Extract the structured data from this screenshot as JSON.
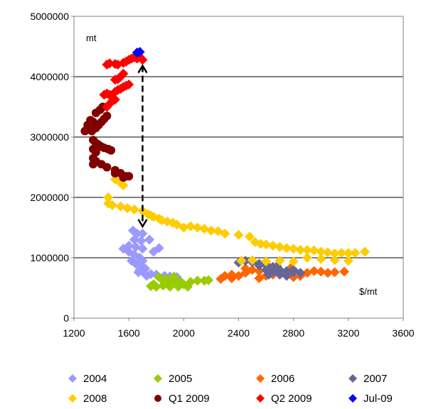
{
  "chart_data": {
    "type": "scatter",
    "title": "",
    "unit_y_label": "mt",
    "unit_x_label": "$/mt",
    "xlim": [
      1200,
      3600
    ],
    "ylim": [
      0,
      5000000
    ],
    "xticks": [
      "1200",
      "1600",
      "2000",
      "2400",
      "2800",
      "3200",
      "3600"
    ],
    "yticks": [
      "0",
      "1000000",
      "2000000",
      "3000000",
      "4000000",
      "5000000"
    ],
    "grid": "horizontal",
    "legend_position": "bottom",
    "series": [
      {
        "name": "2004",
        "color": "#9999ff",
        "marker": "diamond",
        "points": [
          [
            1630,
            1450000
          ],
          [
            1660,
            1400000
          ],
          [
            1700,
            1400000
          ],
          [
            1640,
            1300000
          ],
          [
            1690,
            1280000
          ],
          [
            1750,
            1300000
          ],
          [
            1600,
            1200000
          ],
          [
            1650,
            1180000
          ],
          [
            1700,
            1150000
          ],
          [
            1560,
            1150000
          ],
          [
            1600,
            1100000
          ],
          [
            1820,
            1160000
          ],
          [
            1780,
            1100000
          ],
          [
            1640,
            1050000
          ],
          [
            1680,
            1000000
          ],
          [
            1700,
            950000
          ],
          [
            1620,
            950000
          ],
          [
            1650,
            900000
          ],
          [
            1690,
            870000
          ],
          [
            1720,
            820000
          ],
          [
            1680,
            800000
          ],
          [
            1710,
            750000
          ],
          [
            1760,
            730000
          ],
          [
            1800,
            720000
          ],
          [
            1860,
            700000
          ],
          [
            1900,
            690000
          ],
          [
            1950,
            680000
          ],
          [
            1730,
            700000
          ],
          [
            1670,
            760000
          ]
        ]
      },
      {
        "name": "2005",
        "color": "#99cc00",
        "marker": "diamond",
        "points": [
          [
            1760,
            530000
          ],
          [
            1800,
            520000
          ],
          [
            1850,
            540000
          ],
          [
            1900,
            560000
          ],
          [
            1950,
            580000
          ],
          [
            2000,
            560000
          ],
          [
            1870,
            600000
          ],
          [
            1920,
            620000
          ],
          [
            1980,
            600000
          ],
          [
            2030,
            520000
          ],
          [
            1820,
            680000
          ],
          [
            1840,
            640000
          ],
          [
            1780,
            560000
          ],
          [
            1900,
            520000
          ],
          [
            1960,
            520000
          ],
          [
            2050,
            600000
          ],
          [
            2100,
            620000
          ],
          [
            2150,
            620000
          ],
          [
            2180,
            630000
          ],
          [
            1880,
            650000
          ],
          [
            1930,
            690000
          ]
        ]
      },
      {
        "name": "2006",
        "color": "#ff6600",
        "marker": "diamond",
        "points": [
          [
            2270,
            650000
          ],
          [
            2300,
            700000
          ],
          [
            2350,
            720000
          ],
          [
            2400,
            700000
          ],
          [
            2450,
            750000
          ],
          [
            2500,
            800000
          ],
          [
            2550,
            780000
          ],
          [
            2600,
            700000
          ],
          [
            2650,
            720000
          ],
          [
            2700,
            760000
          ],
          [
            2750,
            720000
          ],
          [
            2800,
            680000
          ],
          [
            2850,
            700000
          ],
          [
            2900,
            750000
          ],
          [
            2950,
            780000
          ],
          [
            3000,
            770000
          ],
          [
            3050,
            750000
          ],
          [
            3100,
            760000
          ],
          [
            3170,
            770000
          ],
          [
            2450,
            820000
          ],
          [
            2350,
            660000
          ],
          [
            2550,
            660000
          ],
          [
            2620,
            850000
          ],
          [
            2780,
            830000
          ]
        ]
      },
      {
        "name": "2007",
        "color": "#666699",
        "marker": "diamond",
        "points": [
          [
            2400,
            920000
          ],
          [
            2450,
            950000
          ],
          [
            2500,
            930000
          ],
          [
            2550,
            900000
          ],
          [
            2600,
            880000
          ],
          [
            2650,
            850000
          ],
          [
            2700,
            800000
          ],
          [
            2750,
            780000
          ],
          [
            2800,
            760000
          ],
          [
            2850,
            750000
          ],
          [
            2650,
            760000
          ],
          [
            2700,
            720000
          ],
          [
            2750,
            700000
          ],
          [
            2600,
            800000
          ],
          [
            2550,
            870000
          ],
          [
            2620,
            720000
          ],
          [
            2680,
            860000
          ],
          [
            2800,
            800000
          ]
        ]
      },
      {
        "name": "2008",
        "color": "#ffcc00",
        "marker": "diamond",
        "points": [
          [
            1500,
            2300000
          ],
          [
            1540,
            2240000
          ],
          [
            1560,
            2200000
          ],
          [
            1450,
            2000000
          ],
          [
            1450,
            1900000
          ],
          [
            1480,
            1870000
          ],
          [
            1540,
            1850000
          ],
          [
            1590,
            1820000
          ],
          [
            1640,
            1800000
          ],
          [
            1700,
            1780000
          ],
          [
            1740,
            1720000
          ],
          [
            1760,
            1700000
          ],
          [
            1780,
            1680000
          ],
          [
            1820,
            1650000
          ],
          [
            1840,
            1620000
          ],
          [
            1880,
            1600000
          ],
          [
            1920,
            1580000
          ],
          [
            1950,
            1550000
          ],
          [
            2000,
            1500000
          ],
          [
            2050,
            1520000
          ],
          [
            2100,
            1500000
          ],
          [
            2150,
            1480000
          ],
          [
            2200,
            1450000
          ],
          [
            2250,
            1440000
          ],
          [
            2300,
            1400000
          ],
          [
            2400,
            1380000
          ],
          [
            2480,
            1350000
          ],
          [
            2520,
            1260000
          ],
          [
            2560,
            1230000
          ],
          [
            2600,
            1220000
          ],
          [
            2650,
            1200000
          ],
          [
            2700,
            1180000
          ],
          [
            2750,
            1160000
          ],
          [
            2800,
            1150000
          ],
          [
            2850,
            1130000
          ],
          [
            2900,
            1130000
          ],
          [
            2950,
            1120000
          ],
          [
            3000,
            1100000
          ],
          [
            3050,
            1090000
          ],
          [
            3100,
            1070000
          ],
          [
            3150,
            1080000
          ],
          [
            3200,
            1080000
          ],
          [
            3250,
            1080000
          ],
          [
            3320,
            1100000
          ],
          [
            2420,
            950000
          ],
          [
            2500,
            960000
          ],
          [
            2600,
            940000
          ],
          [
            2700,
            950000
          ],
          [
            2800,
            940000
          ],
          [
            2900,
            1000000
          ],
          [
            3000,
            980000
          ],
          [
            3100,
            960000
          ],
          [
            3200,
            950000
          ]
        ]
      },
      {
        "name": "Q1 2009",
        "color": "#800000",
        "marker": "circle",
        "points": [
          [
            1280,
            3100000
          ],
          [
            1300,
            3200000
          ],
          [
            1320,
            3280000
          ],
          [
            1340,
            3250000
          ],
          [
            1300,
            3150000
          ],
          [
            1330,
            3100000
          ],
          [
            1360,
            3150000
          ],
          [
            1380,
            3200000
          ],
          [
            1400,
            3250000
          ],
          [
            1420,
            3300000
          ],
          [
            1440,
            3350000
          ],
          [
            1360,
            3400000
          ],
          [
            1390,
            3450000
          ],
          [
            1410,
            3500000
          ],
          [
            1340,
            2950000
          ],
          [
            1360,
            2900000
          ],
          [
            1380,
            2870000
          ],
          [
            1400,
            2840000
          ],
          [
            1420,
            2820000
          ],
          [
            1450,
            2800000
          ],
          [
            1470,
            2780000
          ],
          [
            1340,
            2800000
          ],
          [
            1360,
            2750000
          ],
          [
            1340,
            2650000
          ],
          [
            1360,
            2600000
          ],
          [
            1340,
            2550000
          ],
          [
            1400,
            2550000
          ],
          [
            1440,
            2500000
          ],
          [
            1500,
            2450000
          ],
          [
            1540,
            2400000
          ],
          [
            1580,
            2350000
          ],
          [
            1600,
            2350000
          ],
          [
            1560,
            2330000
          ],
          [
            1500,
            2400000
          ]
        ]
      },
      {
        "name": "Q2 2009",
        "color": "#ff0000",
        "marker": "diamond",
        "points": [
          [
            1440,
            3500000
          ],
          [
            1460,
            3550000
          ],
          [
            1480,
            3600000
          ],
          [
            1500,
            3620000
          ],
          [
            1420,
            3700000
          ],
          [
            1440,
            3720000
          ],
          [
            1460,
            3700000
          ],
          [
            1480,
            3650000
          ],
          [
            1500,
            3750000
          ],
          [
            1520,
            3780000
          ],
          [
            1540,
            3800000
          ],
          [
            1560,
            3830000
          ],
          [
            1580,
            3850000
          ],
          [
            1600,
            3870000
          ],
          [
            1500,
            3950000
          ],
          [
            1520,
            3960000
          ],
          [
            1540,
            4000000
          ],
          [
            1560,
            4050000
          ],
          [
            1440,
            4200000
          ],
          [
            1460,
            4220000
          ],
          [
            1500,
            4210000
          ],
          [
            1520,
            4200000
          ],
          [
            1560,
            4230000
          ],
          [
            1580,
            4250000
          ],
          [
            1600,
            4280000
          ],
          [
            1620,
            4300000
          ],
          [
            1640,
            4320000
          ],
          [
            1660,
            4300000
          ],
          [
            1680,
            4330000
          ],
          [
            1700,
            4280000
          ]
        ]
      },
      {
        "name": "Jul-09",
        "color": "#0000ff",
        "marker": "diamond",
        "points": [
          [
            1660,
            4400000
          ],
          [
            1680,
            4410000
          ]
        ]
      }
    ],
    "annotations": [
      {
        "type": "double-arrow",
        "style": "dashed",
        "from": [
          1700,
          4300000
        ],
        "to": [
          1700,
          1400000
        ]
      }
    ]
  }
}
